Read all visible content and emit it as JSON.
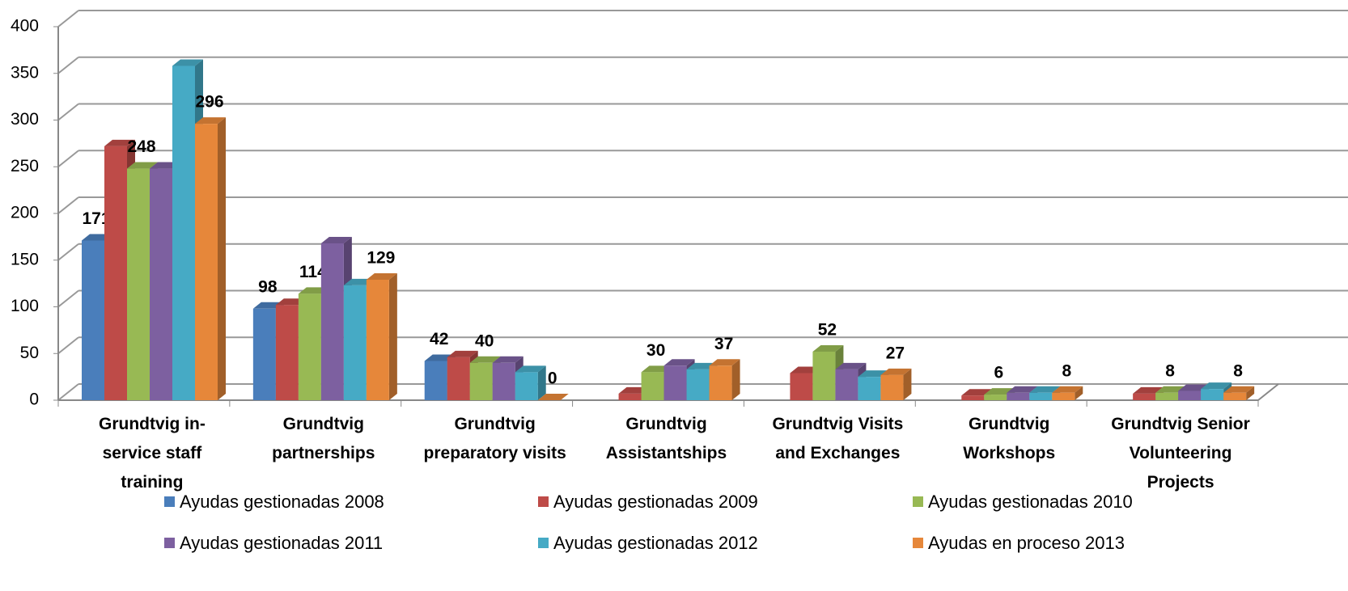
{
  "chart_data": {
    "type": "bar3d",
    "categories": [
      "Grundtvig in-service staff training",
      "Grundtvig partnerships",
      "Grundtvig preparatory visits",
      "Grundtvig Assistantships",
      "Grundtvig Visits and Exchanges",
      "Grundtvig Workshops",
      "Grundtvig Senior Volunteering Projects"
    ],
    "series": [
      {
        "name": "Ayudas gestionadas 2008",
        "color": "#4a7ebb",
        "values": [
          171,
          98,
          42,
          null,
          null,
          null,
          null
        ],
        "value_labels": [
          "171",
          "98",
          "42",
          null,
          null,
          null,
          null
        ]
      },
      {
        "name": "Ayudas gestionadas 2009",
        "color": "#be4b48",
        "values": [
          272,
          102,
          46,
          7,
          29,
          5,
          7
        ],
        "value_labels": [
          null,
          null,
          null,
          null,
          null,
          null,
          null
        ]
      },
      {
        "name": "Ayudas gestionadas 2010",
        "color": "#98b954",
        "values": [
          248,
          114,
          40,
          30,
          52,
          6,
          8
        ],
        "value_labels": [
          "248",
          "114",
          "40",
          "30",
          "52",
          "6",
          "8"
        ]
      },
      {
        "name": "Ayudas gestionadas 2011",
        "color": "#7d60a0",
        "values": [
          248,
          168,
          40,
          37,
          33,
          8,
          10
        ],
        "value_labels": [
          null,
          null,
          null,
          null,
          null,
          null,
          null
        ]
      },
      {
        "name": "Ayudas gestionadas 2012",
        "color": "#46aac5",
        "values": [
          358,
          123,
          30,
          33,
          25,
          8,
          12
        ],
        "value_labels": [
          null,
          null,
          null,
          null,
          null,
          null,
          null
        ]
      },
      {
        "name": "Ayudas en proceso 2013",
        "color": "#e6873a",
        "values": [
          296,
          129,
          0,
          37,
          27,
          8,
          8
        ],
        "value_labels": [
          "296",
          "129",
          "0",
          "37",
          "27",
          "8",
          "8"
        ]
      }
    ],
    "ylim": [
      0,
      400
    ],
    "yticks": [
      0,
      50,
      100,
      150,
      200,
      250,
      300,
      350,
      400
    ],
    "grid": true,
    "legend": "bottom"
  }
}
